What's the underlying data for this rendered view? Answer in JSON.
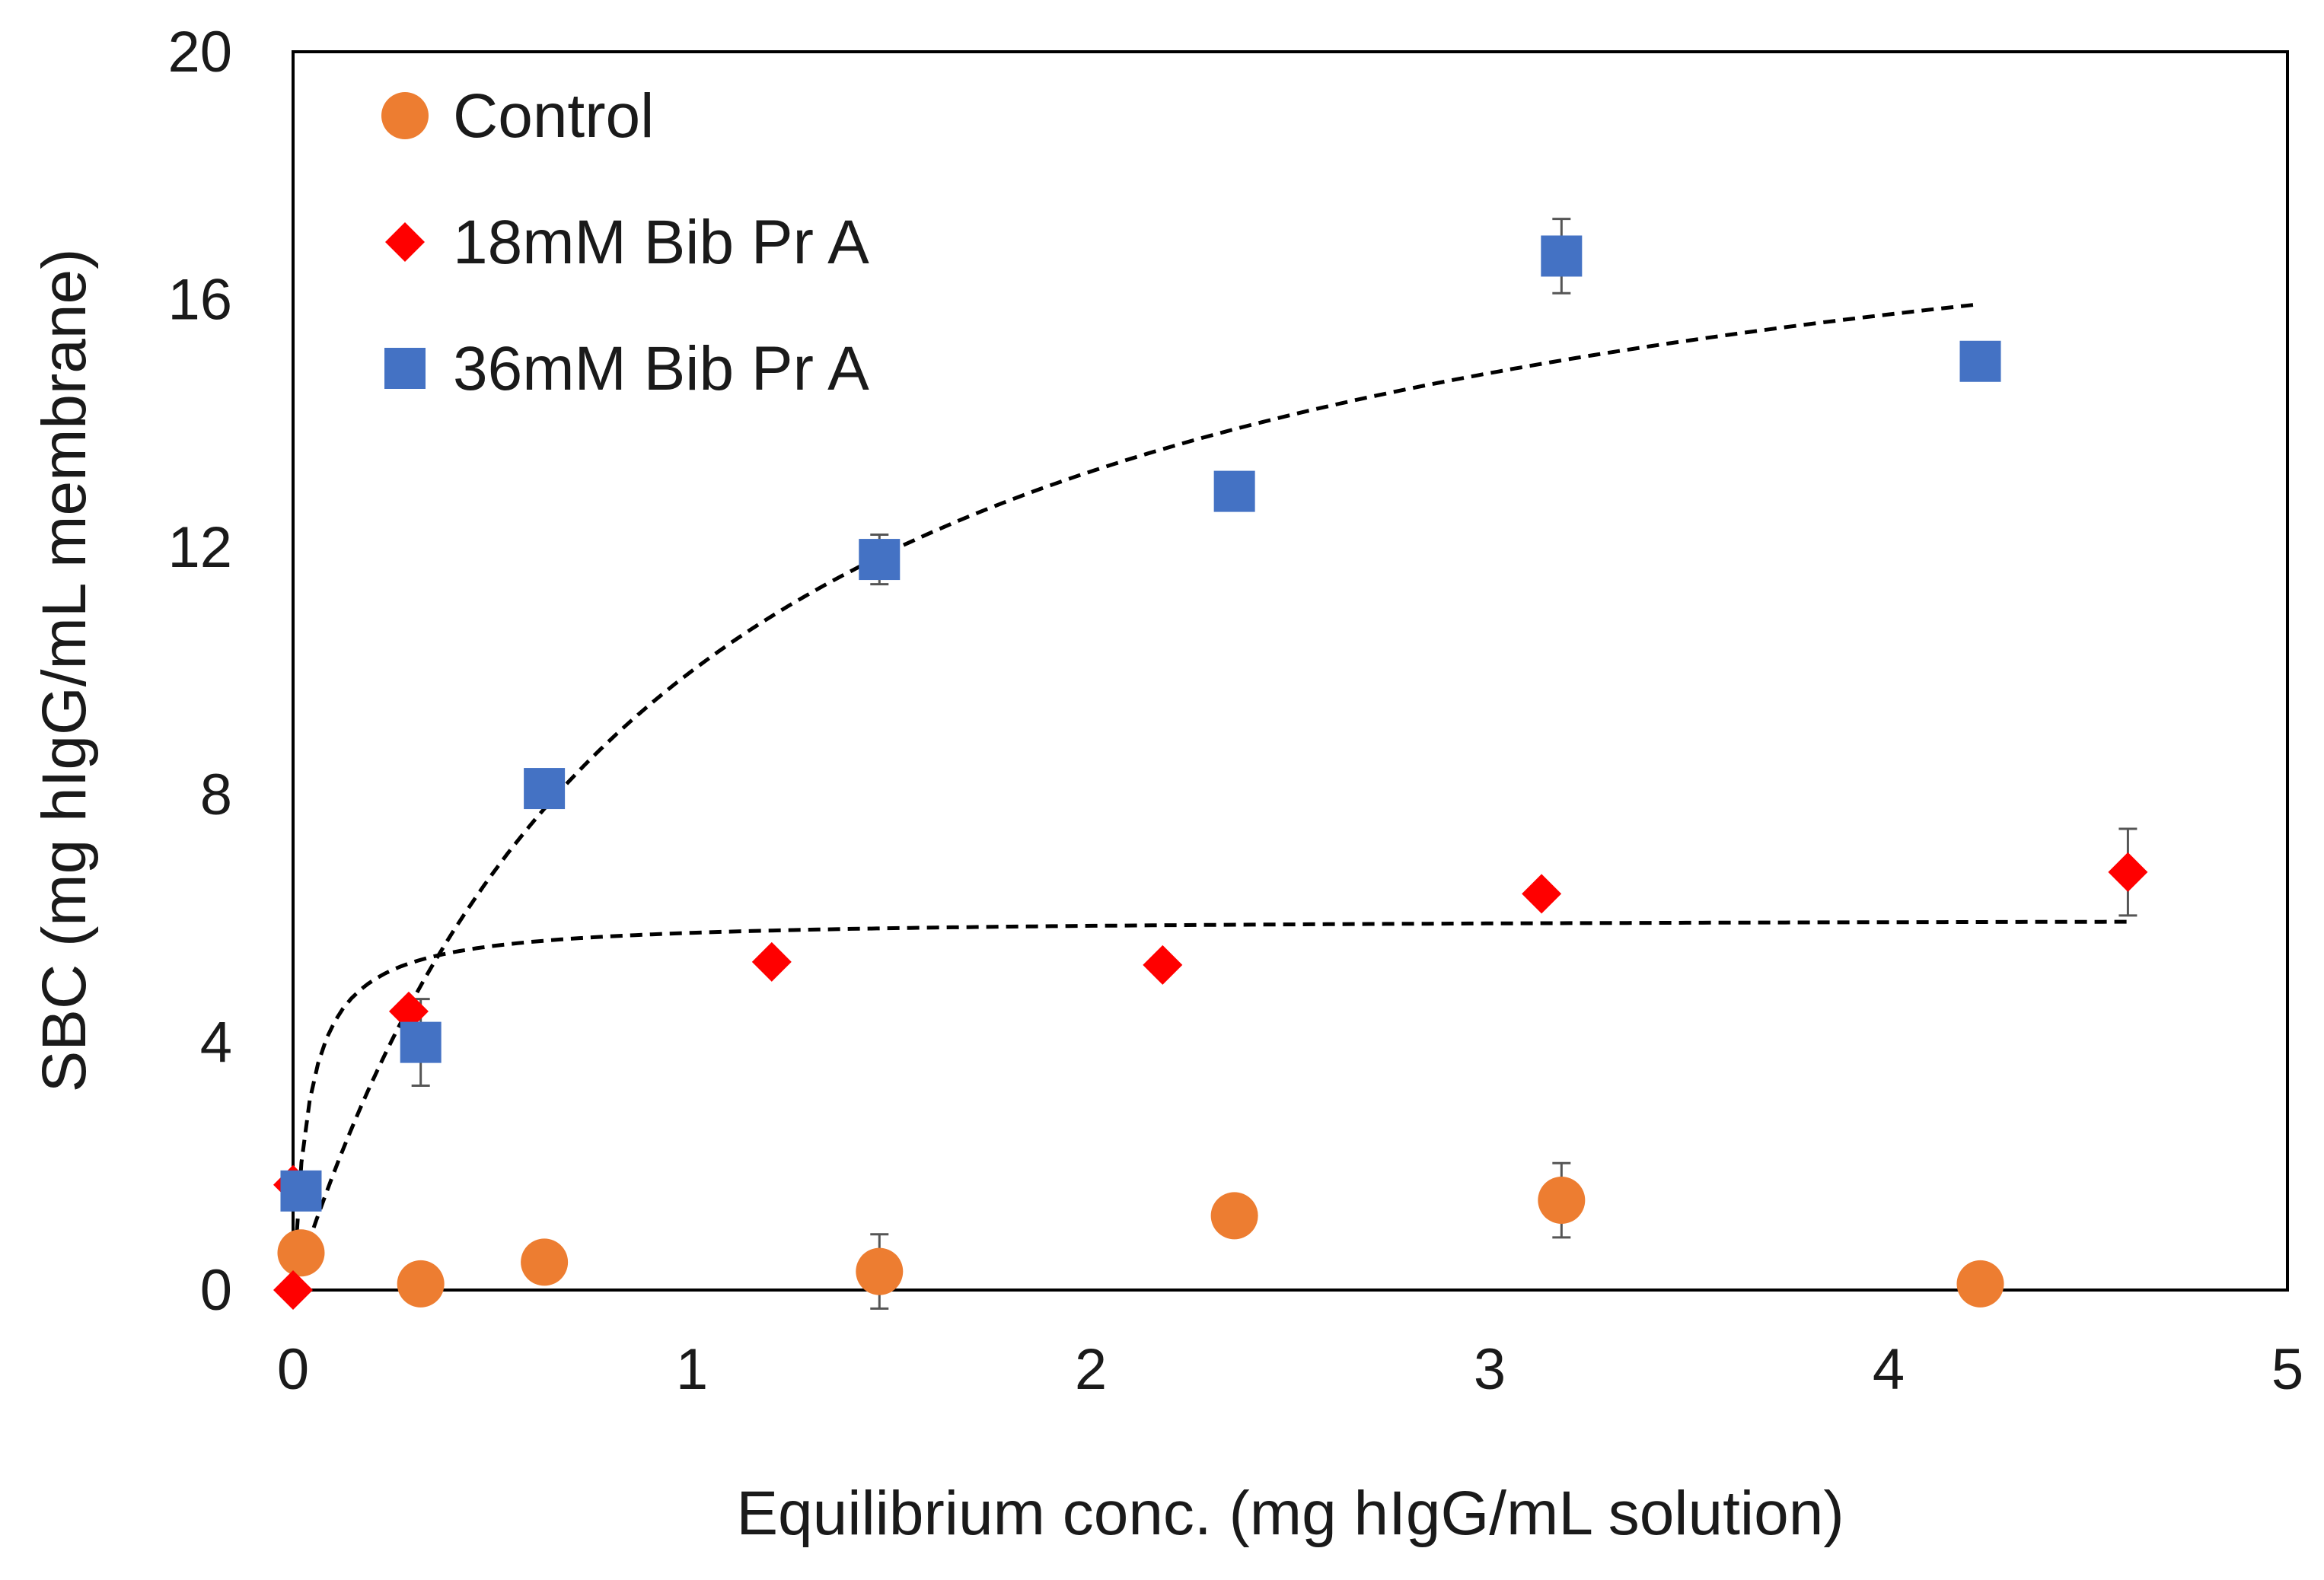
{
  "chart_data": {
    "type": "scatter",
    "title": "",
    "xlabel": "Equilibrium conc. (mg hIgG/mL solution)",
    "ylabel": "SBC (mg hIgG/mL membrane)",
    "xlim": [
      0,
      5
    ],
    "ylim": [
      0,
      20
    ],
    "x_ticks": [
      0,
      1,
      2,
      3,
      4,
      5
    ],
    "y_ticks": [
      0,
      4,
      8,
      12,
      16,
      20
    ],
    "x_tick_labels": [
      "0",
      "1",
      "2",
      "3",
      "4",
      "5"
    ],
    "y_tick_labels": [
      "0",
      "4",
      "8",
      "12",
      "16",
      "20"
    ],
    "grid": false,
    "legend_position": "top-left",
    "series": [
      {
        "name": "Control",
        "marker": "circle",
        "color": "#ED7D31",
        "points": [
          {
            "x": 0.02,
            "y": 0.6,
            "err": null
          },
          {
            "x": 0.32,
            "y": 0.1,
            "err": null
          },
          {
            "x": 0.63,
            "y": 0.45,
            "err": null
          },
          {
            "x": 1.47,
            "y": 0.3,
            "err": 0.6
          },
          {
            "x": 2.36,
            "y": 1.2,
            "err": null
          },
          {
            "x": 3.18,
            "y": 1.45,
            "err": 0.6
          },
          {
            "x": 4.23,
            "y": 0.1,
            "err": null
          }
        ]
      },
      {
        "name": "18mM Bib Pr A",
        "marker": "diamond",
        "color": "#FF0000",
        "points": [
          {
            "x": 0.0,
            "y": 0.0,
            "err": null
          },
          {
            "x": 0.0,
            "y": 1.7,
            "err": null
          },
          {
            "x": 0.29,
            "y": 4.5,
            "err": null
          },
          {
            "x": 1.2,
            "y": 5.3,
            "err": null
          },
          {
            "x": 2.18,
            "y": 5.25,
            "err": null
          },
          {
            "x": 3.13,
            "y": 6.4,
            "err": null
          },
          {
            "x": 4.6,
            "y": 6.75,
            "err": 0.7
          }
        ]
      },
      {
        "name": "36mM Bib Pr A",
        "marker": "square",
        "color": "#4472C4",
        "points": [
          {
            "x": 0.02,
            "y": 1.6,
            "err": null
          },
          {
            "x": 0.32,
            "y": 4.0,
            "err": 0.7
          },
          {
            "x": 0.63,
            "y": 8.1,
            "err": null
          },
          {
            "x": 1.47,
            "y": 11.8,
            "err": 0.4
          },
          {
            "x": 2.36,
            "y": 12.9,
            "err": null
          },
          {
            "x": 3.18,
            "y": 16.7,
            "err": 0.6
          },
          {
            "x": 4.23,
            "y": 15.0,
            "err": null
          }
        ]
      }
    ],
    "fit_curves": [
      {
        "name": "langmuir-fit-18mM",
        "qmax": 6.0,
        "kd": 0.04,
        "x_range": [
          0.0,
          4.6
        ],
        "style": "dashed",
        "color": "#000000"
      },
      {
        "name": "langmuir-fit-36mM",
        "qmax": 19.5,
        "kd": 0.95,
        "x_range": [
          0.02,
          4.23
        ],
        "style": "dashed",
        "color": "#000000"
      }
    ]
  }
}
